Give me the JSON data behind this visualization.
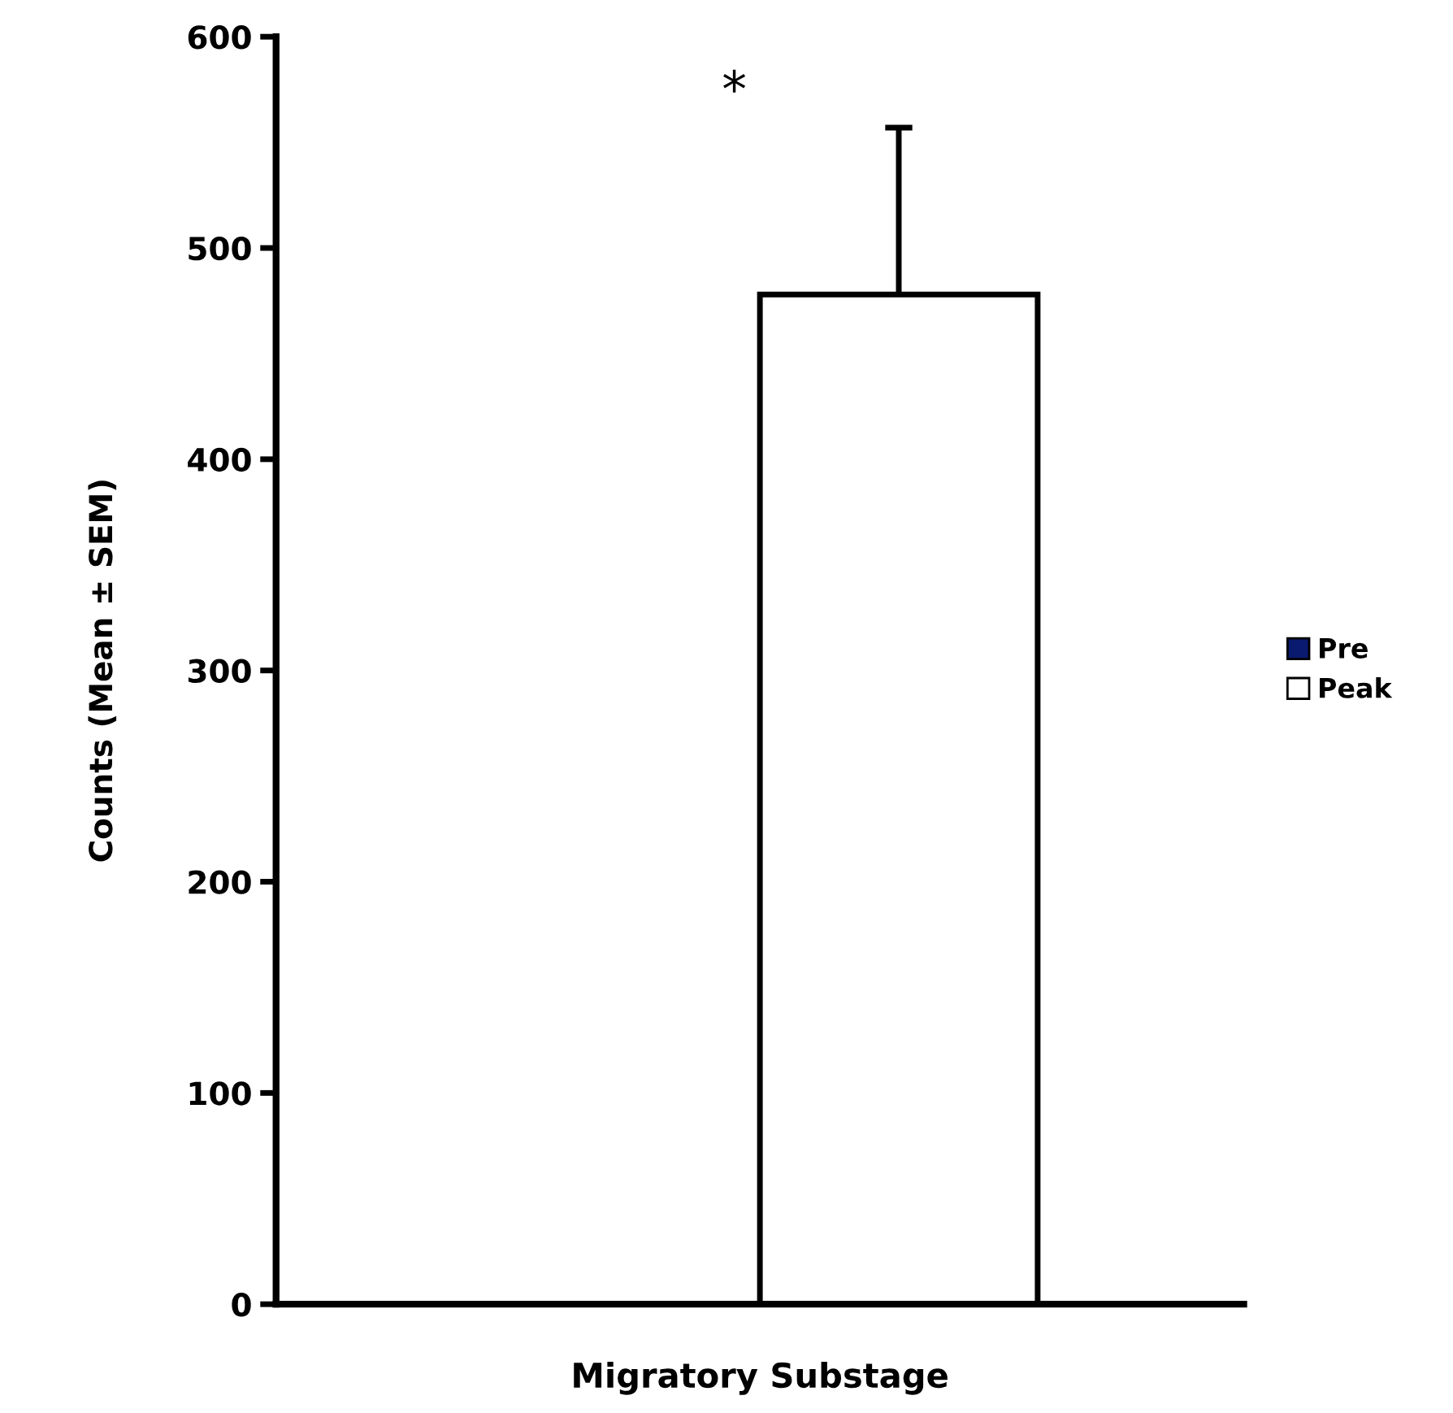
{
  "chart_data": {
    "type": "bar",
    "xlabel": "Migratory Substage",
    "ylabel": "Counts (Mean ± SEM)",
    "categories": [
      null
    ],
    "series": [
      {
        "name": "Pre",
        "color": "#0a1a6e",
        "values": [
          0
        ]
      },
      {
        "name": "Peak",
        "color": "#ffffff",
        "values": [
          478
        ],
        "errors": [
          79
        ]
      }
    ],
    "ylim": [
      0,
      600
    ],
    "yticks": [
      0,
      100,
      200,
      300,
      400,
      500,
      600
    ],
    "annotations": [
      "*"
    ],
    "legend": "right",
    "grid": false
  }
}
